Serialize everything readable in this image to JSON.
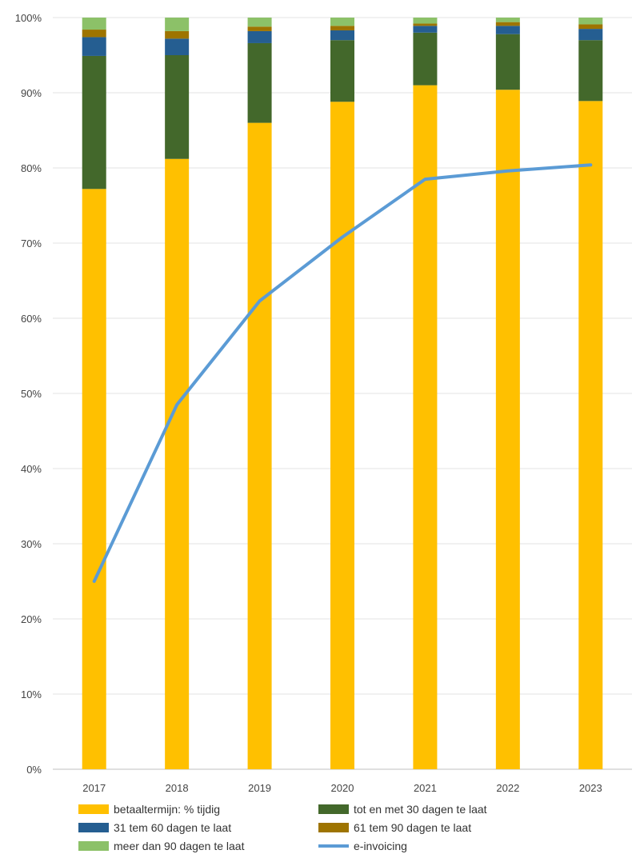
{
  "chart_data": {
    "type": "bar",
    "stacked": true,
    "categories": [
      "2017",
      "2018",
      "2019",
      "2020",
      "2021",
      "2022",
      "2023"
    ],
    "ylim": [
      0,
      100
    ],
    "y_ticks": [
      "0%",
      "10%",
      "20%",
      "30%",
      "40%",
      "50%",
      "60%",
      "70%",
      "80%",
      "90%",
      "100%"
    ],
    "grid": true,
    "legend_position": "bottom",
    "series": [
      {
        "name": "betaaltermijn: % tijdig",
        "type": "bar",
        "color": "#FFC000",
        "values": [
          77.2,
          81.2,
          86.0,
          88.8,
          91.0,
          90.4,
          88.9
        ]
      },
      {
        "name": "tot en met 30 dagen te laat",
        "type": "bar",
        "color": "#43682B",
        "values": [
          17.7,
          13.8,
          10.6,
          8.2,
          7.0,
          7.4,
          8.1
        ]
      },
      {
        "name": "31 tem 60 dagen te laat",
        "type": "bar",
        "color": "#255E91",
        "values": [
          2.5,
          2.2,
          1.6,
          1.3,
          0.9,
          1.1,
          1.5
        ]
      },
      {
        "name": "61 tem 90 dagen te laat",
        "type": "bar",
        "color": "#9E7400",
        "values": [
          1.0,
          1.0,
          0.6,
          0.6,
          0.3,
          0.5,
          0.6
        ]
      },
      {
        "name": "meer dan 90 dagen te laat",
        "type": "bar",
        "color": "#8CC168",
        "values": [
          1.6,
          1.8,
          1.2,
          1.1,
          0.8,
          0.6,
          0.9
        ]
      },
      {
        "name": "e-invoicing",
        "type": "line",
        "color": "#5B9BD5",
        "values": [
          25.0,
          48.5,
          62.3,
          70.8,
          78.5,
          79.6,
          80.4
        ]
      }
    ]
  }
}
